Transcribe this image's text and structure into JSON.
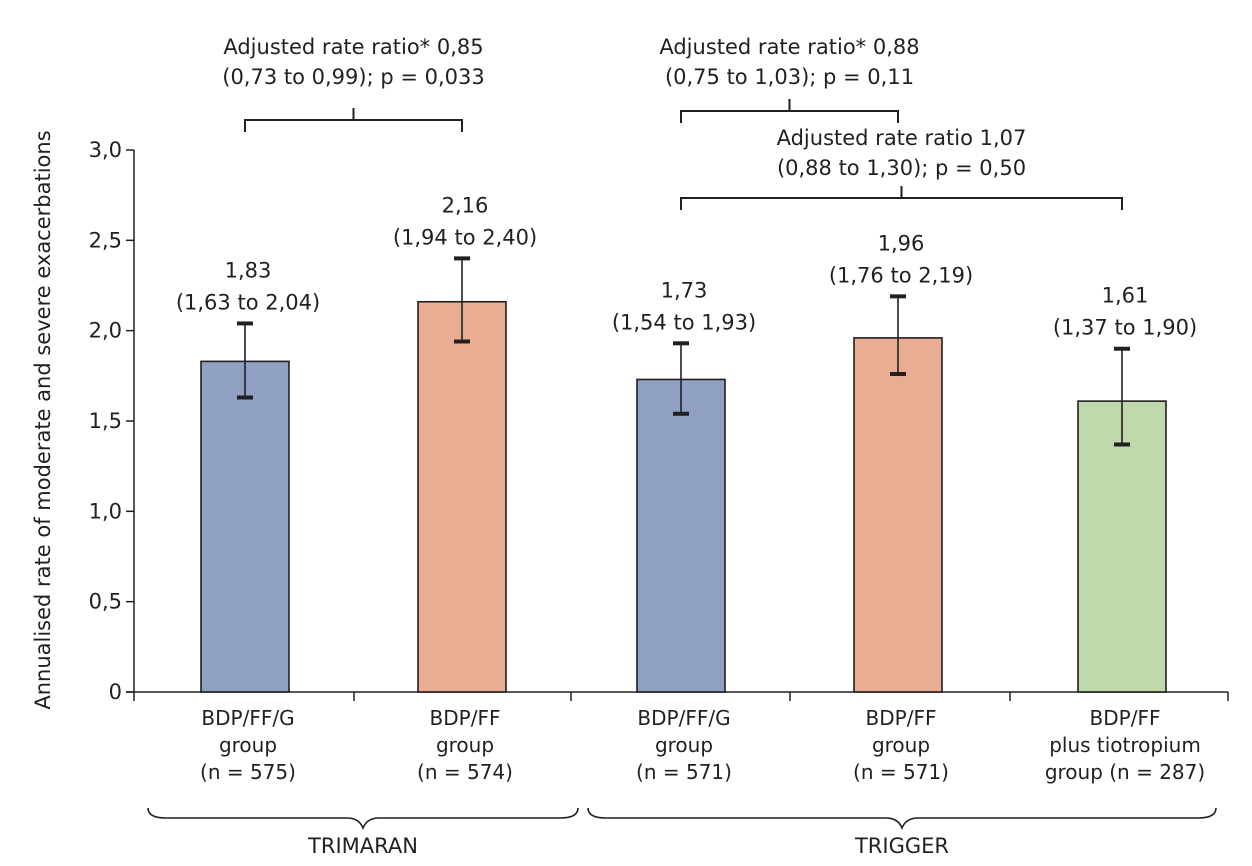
{
  "chart_data": {
    "type": "bar",
    "ylabel": "Annualised rate of moderate and severe exacerbations",
    "ylim": [
      0,
      3.0
    ],
    "yticks": [
      "0",
      "0,5",
      "1,0",
      "1,5",
      "2,0",
      "2,5",
      "3,0"
    ],
    "grid": false,
    "legend": "none",
    "categories": [
      [
        "BDP/FF/G",
        "group",
        "(n = 575)"
      ],
      [
        "BDP/FF",
        "group",
        "(n = 574)"
      ],
      [
        "BDP/FF/G",
        "group",
        "(n = 571)"
      ],
      [
        "BDP/FF",
        "group",
        "(n = 571)"
      ],
      [
        "BDP/FF",
        "plus tiotropium",
        "group (n = 287)"
      ]
    ],
    "values": [
      1.83,
      2.16,
      1.73,
      1.96,
      1.61
    ],
    "error_low": [
      1.63,
      1.94,
      1.54,
      1.76,
      1.37
    ],
    "error_high": [
      2.04,
      2.4,
      1.93,
      2.19,
      1.9
    ],
    "value_labels": [
      [
        "1,83",
        "(1,63 to 2,04)"
      ],
      [
        "2,16",
        "(1,94 to 2,40)"
      ],
      [
        "1,73",
        "(1,54 to 1,93)"
      ],
      [
        "1,96",
        "(1,76 to 2,19)"
      ],
      [
        "1,61",
        "(1,37 to 1,90)"
      ]
    ],
    "colors": [
      "#8fa0c3",
      "#e8ad93",
      "#8fa0c3",
      "#e8ad93",
      "#bfd9ad"
    ],
    "comparisons": [
      {
        "from": 0,
        "to": 1,
        "lines": [
          "Adjusted rate ratio* 0,85",
          "(0,73 to 0,99); p = 0,033"
        ]
      },
      {
        "from": 2,
        "to": 3,
        "lines": [
          "Adjusted rate ratio* 0,88",
          "(0,75 to 1,03); p = 0,11"
        ]
      },
      {
        "from": 2,
        "to": 4,
        "lines": [
          "Adjusted rate ratio 1,07",
          "(0,88 to 1,30); p = 0,50"
        ]
      }
    ],
    "groups": [
      {
        "name": "TRIMARAN",
        "from": 0,
        "to": 1
      },
      {
        "name": "TRIGGER",
        "from": 2,
        "to": 4
      }
    ]
  }
}
